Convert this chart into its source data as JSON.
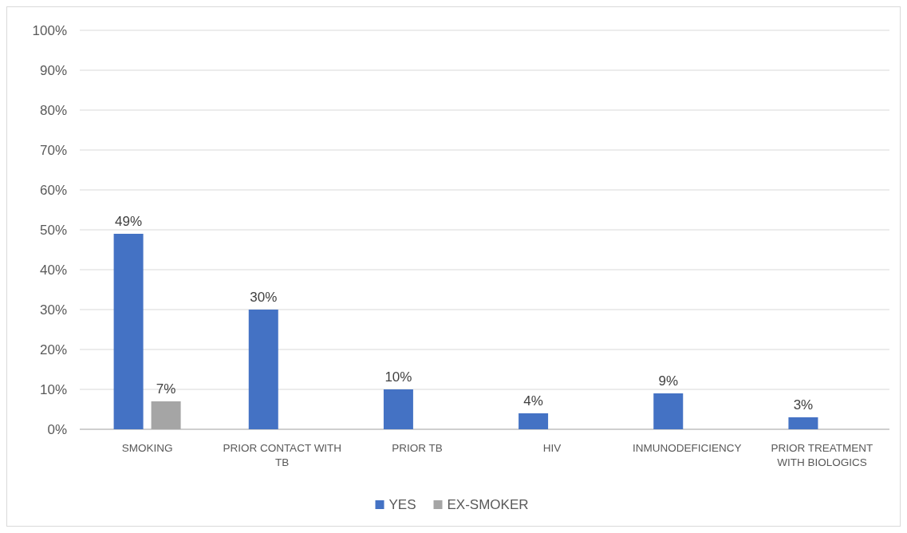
{
  "chart_data": {
    "type": "bar",
    "categories": [
      "SMOKING",
      "PRIOR CONTACT WITH TB",
      "PRIOR TB",
      "HIV",
      "INMUNODEFICIENCY",
      "PRIOR TREATMENT WITH BIOLOGICS"
    ],
    "series": [
      {
        "name": "YES",
        "color": "#4472c4",
        "values": [
          49,
          30,
          10,
          4,
          9,
          3
        ],
        "value_labels": [
          "49%",
          "30%",
          "10%",
          "4%",
          "9%",
          "3%"
        ]
      },
      {
        "name": "EX-SMOKER",
        "color": "#a5a5a5",
        "values": [
          7,
          null,
          null,
          null,
          null,
          null
        ],
        "value_labels": [
          "7%",
          null,
          null,
          null,
          null,
          null
        ]
      }
    ],
    "ylim": [
      0,
      100
    ],
    "yticks": [
      {
        "value": 0,
        "label": "0%"
      },
      {
        "value": 10,
        "label": "10%"
      },
      {
        "value": 20,
        "label": "20%"
      },
      {
        "value": 30,
        "label": "30%"
      },
      {
        "value": 40,
        "label": "40%"
      },
      {
        "value": 50,
        "label": "50%"
      },
      {
        "value": 60,
        "label": "60%"
      },
      {
        "value": 70,
        "label": "70%"
      },
      {
        "value": 80,
        "label": "80%"
      },
      {
        "value": 90,
        "label": "90%"
      },
      {
        "value": 100,
        "label": "100%"
      }
    ],
    "grid": "y",
    "legend": "bottom"
  }
}
